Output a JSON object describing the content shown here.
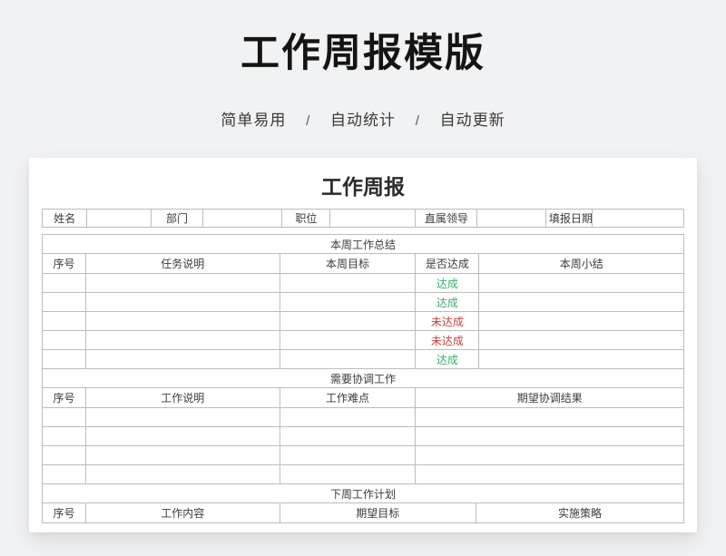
{
  "page": {
    "title": "工作周报模版",
    "subtitle": [
      "简单易用",
      "自动统计",
      "自动更新"
    ],
    "subtitle_separator": "/"
  },
  "card": {
    "table_title": "工作周报",
    "info_row": {
      "fields": [
        {
          "label": "姓名",
          "value": ""
        },
        {
          "label": "部门",
          "value": ""
        },
        {
          "label": "职位",
          "value": ""
        },
        {
          "label": "直属领导",
          "value": ""
        },
        {
          "label": "填报日期",
          "value": ""
        }
      ]
    },
    "status_colors": {
      "success": "#3caa6e",
      "fail": "#c3413e"
    },
    "sections": [
      {
        "title": "本周工作总结",
        "columns": [
          "序号",
          "任务说明",
          "本周目标",
          "是否达成",
          "本周小结"
        ],
        "rows": [
          {
            "values": [
              "",
              "",
              "",
              "达成",
              ""
            ],
            "status": "success"
          },
          {
            "values": [
              "",
              "",
              "",
              "达成",
              ""
            ],
            "status": "success"
          },
          {
            "values": [
              "",
              "",
              "",
              "未达成",
              ""
            ],
            "status": "fail"
          },
          {
            "values": [
              "",
              "",
              "",
              "未达成",
              ""
            ],
            "status": "fail"
          },
          {
            "values": [
              "",
              "",
              "",
              "达成",
              ""
            ],
            "status": "success"
          }
        ]
      },
      {
        "title": "需要协调工作",
        "columns": [
          "序号",
          "工作说明",
          "工作难点",
          "期望协调结果"
        ],
        "rows": [
          {
            "values": [
              "",
              "",
              "",
              ""
            ]
          },
          {
            "values": [
              "",
              "",
              "",
              ""
            ]
          },
          {
            "values": [
              "",
              "",
              "",
              ""
            ]
          },
          {
            "values": [
              "",
              "",
              "",
              ""
            ]
          }
        ]
      },
      {
        "title": "下周工作计划",
        "columns": [
          "序号",
          "工作内容",
          "期望目标",
          "实施策略"
        ],
        "rows": []
      }
    ]
  }
}
